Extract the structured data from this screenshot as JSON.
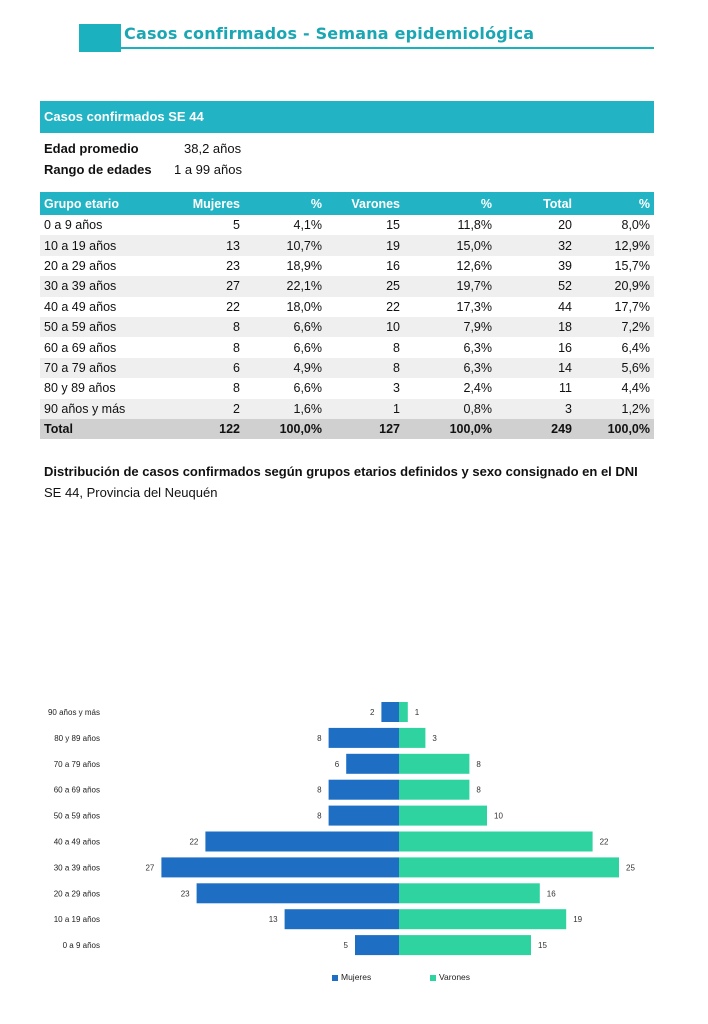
{
  "header": {
    "title": "Casos confirmados - Semana epidemiológica"
  },
  "summary": {
    "band_title": "Casos confirmados SE 44",
    "avg_label": "Edad promedio",
    "avg_value": "38,2 años",
    "range_label": "Rango de edades",
    "range_value": "1 a 99 años"
  },
  "table": {
    "headers": [
      "Grupo etario",
      "Mujeres",
      "%",
      "Varones",
      "%",
      "Total",
      "%"
    ],
    "rows": [
      [
        "0 a 9 años",
        "5",
        "4,1%",
        "15",
        "11,8%",
        "20",
        "8,0%"
      ],
      [
        "10 a 19 años",
        "13",
        "10,7%",
        "19",
        "15,0%",
        "32",
        "12,9%"
      ],
      [
        "20 a 29 años",
        "23",
        "18,9%",
        "16",
        "12,6%",
        "39",
        "15,7%"
      ],
      [
        "30 a 39 años",
        "27",
        "22,1%",
        "25",
        "19,7%",
        "52",
        "20,9%"
      ],
      [
        "40 a 49 años",
        "22",
        "18,0%",
        "22",
        "17,3%",
        "44",
        "17,7%"
      ],
      [
        "50 a 59 años",
        "8",
        "6,6%",
        "10",
        "7,9%",
        "18",
        "7,2%"
      ],
      [
        "60 a 69 años",
        "8",
        "6,6%",
        "8",
        "6,3%",
        "16",
        "6,4%"
      ],
      [
        "70 a 79 años",
        "6",
        "4,9%",
        "8",
        "6,3%",
        "14",
        "5,6%"
      ],
      [
        "80 y 89 años",
        "8",
        "6,6%",
        "3",
        "2,4%",
        "11",
        "4,4%"
      ],
      [
        "90 años y más",
        "2",
        "1,6%",
        "1",
        "0,8%",
        "3",
        "1,2%"
      ]
    ],
    "total": [
      "Total",
      "122",
      "100,0%",
      "127",
      "100,0%",
      "249",
      "100,0%"
    ]
  },
  "distribution": {
    "title": "Distribución de casos confirmados según grupos etarios definidos y sexo consignado en el DNI",
    "subtitle": "SE 44, Provincia del Neuquén"
  },
  "chart_data": {
    "type": "bar",
    "orientation": "horizontal-pyramid",
    "categories": [
      "90 años y más",
      "80 y 89 años",
      "70 a 79 años",
      "60 a 69 años",
      "50 a 59 años",
      "40 a 49 años",
      "30 a 39 años",
      "20 a 29 años",
      "10 a 19 años",
      "0 a 9 años"
    ],
    "series": [
      {
        "name": "Mujeres",
        "values": [
          2,
          8,
          6,
          8,
          8,
          22,
          27,
          23,
          13,
          5
        ],
        "color": "#1e6fc4"
      },
      {
        "name": "Varones",
        "values": [
          1,
          3,
          8,
          8,
          10,
          22,
          25,
          16,
          19,
          15
        ],
        "color": "#2fd3a0"
      }
    ],
    "legend_position": "bottom",
    "grid": false,
    "data_labels": true
  },
  "colors": {
    "accent": "#22b3c4",
    "header_text": "#1aa6b3",
    "row_alt": "#efefef",
    "total_row": "#d0d0d0"
  }
}
